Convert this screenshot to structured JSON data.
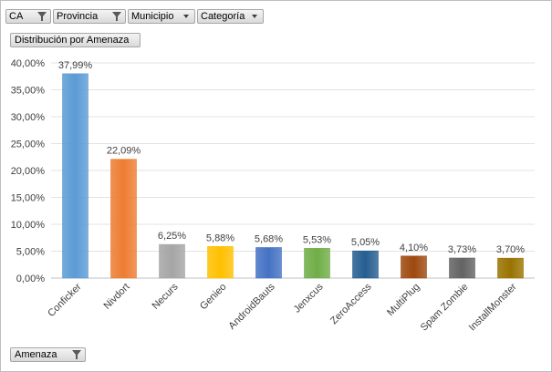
{
  "filters": [
    {
      "label": "CA",
      "icon": "filter-funnel-icon"
    },
    {
      "label": "Provincia",
      "icon": "filter-funnel-icon"
    },
    {
      "label": "Municipio",
      "icon": "dropdown-arrow-icon"
    },
    {
      "label": "Categoría",
      "icon": "dropdown-arrow-icon"
    }
  ],
  "value_field": {
    "label": "Distribución por Amenaza"
  },
  "axis_field": {
    "label": "Amenaza",
    "icon": "filter-funnel-icon"
  },
  "colors": {
    "Conficker": "#5b9bd5",
    "Nivdort": "#ed7d31",
    "Necurs": "#a5a5a5",
    "Genieo": "#ffc000",
    "AndroidBauts": "#4472c4",
    "Jenxcus": "#70ad47",
    "ZeroAccess": "#255e91",
    "MultiPlug": "#9e480e",
    "Spam Zombie": "#636363",
    "InstallMonster": "#997300"
  },
  "chart_data": {
    "type": "bar",
    "categories": [
      "Conficker",
      "Nivdort",
      "Necurs",
      "Genieo",
      "AndroidBauts",
      "Jenxcus",
      "ZeroAccess",
      "MultiPlug",
      "Spam Zombie",
      "InstallMonster"
    ],
    "values": [
      37.99,
      22.09,
      6.25,
      5.88,
      5.68,
      5.53,
      5.05,
      4.1,
      3.73,
      3.7
    ],
    "data_labels": [
      "37,99%",
      "22,09%",
      "6,25%",
      "5,88%",
      "5,68%",
      "5,53%",
      "5,05%",
      "4,10%",
      "3,73%",
      "3,70%"
    ],
    "ylim": [
      0,
      40
    ],
    "yticks": [
      0,
      5,
      10,
      15,
      20,
      25,
      30,
      35,
      40
    ],
    "ytick_labels": [
      "0,00%",
      "5,00%",
      "10,00%",
      "15,00%",
      "20,00%",
      "25,00%",
      "30,00%",
      "35,00%",
      "40,00%"
    ],
    "grid": true,
    "legend": "none"
  }
}
